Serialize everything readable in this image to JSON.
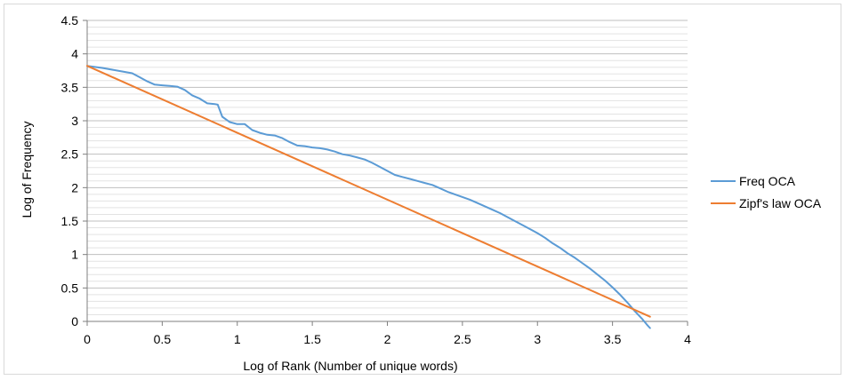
{
  "chart_data": {
    "type": "line",
    "title": "",
    "xlabel": "Log of  Rank (Number of unique words)",
    "ylabel": "Log of Frequency",
    "xlim": [
      0,
      4
    ],
    "ylim": [
      0,
      4.5
    ],
    "xticks": [
      "0",
      "0.5",
      "1",
      "1.5",
      "2",
      "2.5",
      "3",
      "3.5",
      "4"
    ],
    "yticks": [
      "0",
      "0.5",
      "1",
      "1.5",
      "2",
      "2.5",
      "3",
      "3.5",
      "4",
      "4.5"
    ],
    "grid": true,
    "legend_position": "right",
    "series": [
      {
        "name": "Freq OCA",
        "color": "#5b9bd5",
        "x": [
          0,
          0.1,
          0.2,
          0.3,
          0.35,
          0.4,
          0.45,
          0.5,
          0.55,
          0.6,
          0.65,
          0.7,
          0.75,
          0.8,
          0.85,
          0.87,
          0.9,
          0.95,
          1.0,
          1.05,
          1.1,
          1.15,
          1.2,
          1.25,
          1.3,
          1.35,
          1.4,
          1.45,
          1.5,
          1.55,
          1.6,
          1.65,
          1.7,
          1.75,
          1.8,
          1.85,
          1.9,
          1.95,
          2.0,
          2.05,
          2.1,
          2.15,
          2.2,
          2.25,
          2.3,
          2.35,
          2.4,
          2.45,
          2.5,
          2.55,
          2.6,
          2.65,
          2.7,
          2.75,
          2.8,
          2.85,
          2.9,
          2.95,
          3.0,
          3.05,
          3.1,
          3.15,
          3.2,
          3.25,
          3.3,
          3.35,
          3.4,
          3.45,
          3.5,
          3.55,
          3.6,
          3.65,
          3.7,
          3.73,
          3.75
        ],
        "y": [
          3.82,
          3.79,
          3.75,
          3.71,
          3.65,
          3.59,
          3.54,
          3.53,
          3.52,
          3.51,
          3.46,
          3.38,
          3.33,
          3.26,
          3.25,
          3.24,
          3.06,
          2.98,
          2.95,
          2.95,
          2.86,
          2.82,
          2.79,
          2.78,
          2.74,
          2.68,
          2.63,
          2.62,
          2.6,
          2.59,
          2.57,
          2.54,
          2.5,
          2.48,
          2.45,
          2.42,
          2.37,
          2.31,
          2.25,
          2.19,
          2.16,
          2.13,
          2.1,
          2.07,
          2.04,
          1.99,
          1.94,
          1.9,
          1.86,
          1.82,
          1.77,
          1.72,
          1.67,
          1.62,
          1.56,
          1.5,
          1.44,
          1.38,
          1.32,
          1.25,
          1.17,
          1.1,
          1.02,
          0.95,
          0.87,
          0.79,
          0.7,
          0.61,
          0.51,
          0.4,
          0.28,
          0.15,
          0.03,
          -0.05,
          -0.1
        ]
      },
      {
        "name": "Zipf's law OCA",
        "color": "#ed7d31",
        "x": [
          0,
          3.75
        ],
        "y": [
          3.82,
          0.07
        ]
      }
    ]
  }
}
